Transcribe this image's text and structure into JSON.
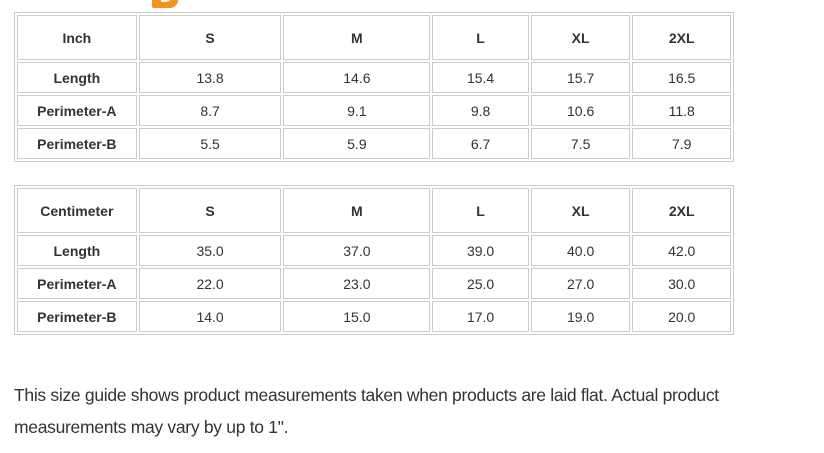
{
  "page": {
    "background_color": "#ffffff",
    "accent_color": "#f6921e",
    "border_color": "#cccccc",
    "text_color": "#333333"
  },
  "tables": [
    {
      "unit_header": "Inch",
      "size_headers": [
        "S",
        "M",
        "L",
        "XL",
        "2XL"
      ],
      "rows": [
        {
          "label": "Length",
          "values": [
            "13.8",
            "14.6",
            "15.4",
            "15.7",
            "16.5"
          ]
        },
        {
          "label": "Perimeter-A",
          "values": [
            "8.7",
            "9.1",
            "9.8",
            "10.6",
            "11.8"
          ]
        },
        {
          "label": "Perimeter-B",
          "values": [
            "5.5",
            "5.9",
            "6.7",
            "7.5",
            "7.9"
          ]
        }
      ]
    },
    {
      "unit_header": "Centimeter",
      "size_headers": [
        "S",
        "M",
        "L",
        "XL",
        "2XL"
      ],
      "rows": [
        {
          "label": "Length",
          "values": [
            "35.0",
            "37.0",
            "39.0",
            "40.0",
            "42.0"
          ]
        },
        {
          "label": "Perimeter-A",
          "values": [
            "22.0",
            "23.0",
            "25.0",
            "27.0",
            "30.0"
          ]
        },
        {
          "label": "Perimeter-B",
          "values": [
            "14.0",
            "15.0",
            "17.0",
            "19.0",
            "20.0"
          ]
        }
      ]
    }
  ],
  "footer": {
    "lines": [
      "This size guide shows product measurements taken when products are laid flat. Actual product",
      "measurements may vary by up to 1\"."
    ]
  }
}
